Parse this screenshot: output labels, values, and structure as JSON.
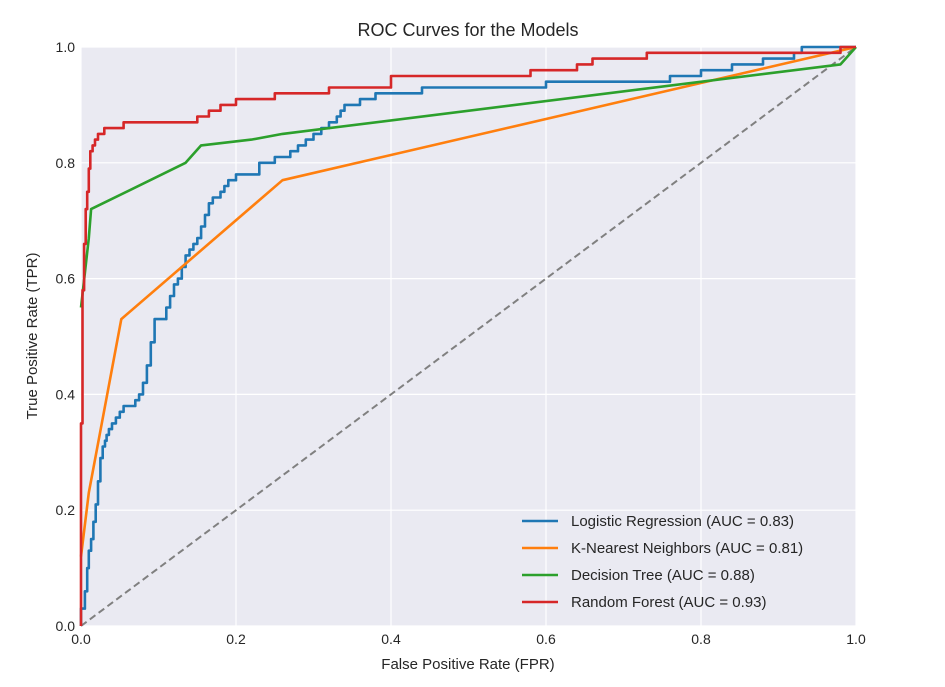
{
  "chart_data": {
    "type": "line",
    "title": "ROC Curves for the Models",
    "xlabel": "False Positive Rate (FPR)",
    "ylabel": "True Positive Rate (TPR)",
    "xlim": [
      0.0,
      1.0
    ],
    "ylim": [
      0.0,
      1.0
    ],
    "xticks": [
      0.0,
      0.2,
      0.4,
      0.6,
      0.8,
      1.0
    ],
    "yticks": [
      0.0,
      0.2,
      0.4,
      0.6,
      0.8,
      1.0
    ],
    "xtick_labels": [
      "0.0",
      "0.2",
      "0.4",
      "0.6",
      "0.8",
      "1.0"
    ],
    "ytick_labels": [
      "0.0",
      "0.2",
      "0.4",
      "0.6",
      "0.8",
      "1.0"
    ],
    "grid": true,
    "legend_position": "lower-right",
    "background": "#eaeaf2",
    "series": [
      {
        "name": "Logistic Regression (AUC = 0.83)",
        "color": "#1f77b4",
        "step": true,
        "x": [
          0.0,
          0.0,
          0.005,
          0.005,
          0.008,
          0.008,
          0.01,
          0.01,
          0.013,
          0.013,
          0.016,
          0.016,
          0.019,
          0.019,
          0.022,
          0.022,
          0.025,
          0.025,
          0.028,
          0.028,
          0.031,
          0.031,
          0.033,
          0.033,
          0.036,
          0.036,
          0.04,
          0.04,
          0.045,
          0.045,
          0.05,
          0.05,
          0.055,
          0.055,
          0.07,
          0.07,
          0.075,
          0.075,
          0.08,
          0.08,
          0.085,
          0.085,
          0.09,
          0.09,
          0.095,
          0.095,
          0.11,
          0.11,
          0.115,
          0.115,
          0.12,
          0.12,
          0.125,
          0.125,
          0.13,
          0.13,
          0.135,
          0.135,
          0.14,
          0.14,
          0.145,
          0.145,
          0.15,
          0.15,
          0.155,
          0.155,
          0.16,
          0.16,
          0.165,
          0.165,
          0.17,
          0.17,
          0.18,
          0.18,
          0.185,
          0.185,
          0.19,
          0.19,
          0.2,
          0.2,
          0.23,
          0.23,
          0.25,
          0.25,
          0.27,
          0.27,
          0.28,
          0.28,
          0.29,
          0.29,
          0.3,
          0.3,
          0.31,
          0.31,
          0.32,
          0.32,
          0.33,
          0.33,
          0.335,
          0.335,
          0.34,
          0.34,
          0.36,
          0.36,
          0.38,
          0.38,
          0.44,
          0.44,
          0.6,
          0.6,
          0.76,
          0.76,
          0.8,
          0.8,
          0.84,
          0.84,
          0.88,
          0.88,
          0.92,
          0.92,
          0.93,
          0.93,
          1.0
        ],
        "y": [
          0.0,
          0.03,
          0.03,
          0.06,
          0.06,
          0.1,
          0.1,
          0.13,
          0.13,
          0.15,
          0.15,
          0.18,
          0.18,
          0.21,
          0.21,
          0.25,
          0.25,
          0.29,
          0.29,
          0.31,
          0.31,
          0.32,
          0.32,
          0.33,
          0.33,
          0.34,
          0.34,
          0.35,
          0.35,
          0.36,
          0.36,
          0.37,
          0.37,
          0.38,
          0.38,
          0.39,
          0.39,
          0.4,
          0.4,
          0.42,
          0.42,
          0.45,
          0.45,
          0.49,
          0.49,
          0.53,
          0.53,
          0.55,
          0.55,
          0.57,
          0.57,
          0.59,
          0.59,
          0.6,
          0.6,
          0.62,
          0.62,
          0.64,
          0.64,
          0.65,
          0.65,
          0.66,
          0.66,
          0.67,
          0.67,
          0.69,
          0.69,
          0.71,
          0.71,
          0.73,
          0.73,
          0.74,
          0.74,
          0.75,
          0.75,
          0.76,
          0.76,
          0.77,
          0.77,
          0.78,
          0.78,
          0.8,
          0.8,
          0.81,
          0.81,
          0.82,
          0.82,
          0.83,
          0.83,
          0.84,
          0.84,
          0.85,
          0.85,
          0.86,
          0.86,
          0.87,
          0.87,
          0.88,
          0.88,
          0.89,
          0.89,
          0.9,
          0.9,
          0.91,
          0.91,
          0.92,
          0.92,
          0.93,
          0.93,
          0.94,
          0.94,
          0.95,
          0.95,
          0.96,
          0.96,
          0.97,
          0.97,
          0.98,
          0.98,
          0.99,
          0.99,
          1.0,
          1.0
        ]
      },
      {
        "name": "K-Nearest Neighbors (AUC = 0.81)",
        "color": "#ff7f0e",
        "step": false,
        "x": [
          0.0,
          0.01,
          0.052,
          0.26,
          1.0
        ],
        "y": [
          0.12,
          0.23,
          0.53,
          0.77,
          1.0
        ]
      },
      {
        "name": "Decision Tree (AUC = 0.88)",
        "color": "#2ca02c",
        "step": false,
        "x": [
          0.0,
          0.01,
          0.013,
          0.135,
          0.155,
          0.22,
          0.26,
          0.98,
          1.0
        ],
        "y": [
          0.55,
          0.67,
          0.72,
          0.8,
          0.83,
          0.84,
          0.85,
          0.97,
          1.0
        ]
      },
      {
        "name": "Random Forest (AUC = 0.93)",
        "color": "#d62728",
        "step": true,
        "x": [
          0.0,
          0.0,
          0.002,
          0.002,
          0.004,
          0.004,
          0.006,
          0.006,
          0.008,
          0.008,
          0.01,
          0.01,
          0.012,
          0.012,
          0.015,
          0.015,
          0.018,
          0.018,
          0.022,
          0.022,
          0.03,
          0.03,
          0.055,
          0.055,
          0.15,
          0.15,
          0.165,
          0.165,
          0.18,
          0.18,
          0.2,
          0.2,
          0.25,
          0.25,
          0.32,
          0.32,
          0.4,
          0.4,
          0.58,
          0.58,
          0.64,
          0.64,
          0.66,
          0.66,
          0.73,
          0.73,
          0.98,
          0.98,
          1.0
        ],
        "y": [
          0.0,
          0.35,
          0.35,
          0.58,
          0.58,
          0.66,
          0.66,
          0.72,
          0.72,
          0.75,
          0.75,
          0.79,
          0.79,
          0.82,
          0.82,
          0.83,
          0.83,
          0.84,
          0.84,
          0.85,
          0.85,
          0.86,
          0.86,
          0.87,
          0.87,
          0.88,
          0.88,
          0.89,
          0.89,
          0.9,
          0.9,
          0.91,
          0.91,
          0.92,
          0.92,
          0.93,
          0.93,
          0.95,
          0.95,
          0.96,
          0.96,
          0.97,
          0.97,
          0.98,
          0.98,
          0.99,
          0.99,
          1.0,
          1.0
        ]
      }
    ],
    "reference_line": {
      "x": [
        0.0,
        1.0
      ],
      "y": [
        0.0,
        1.0
      ],
      "color": "#808080",
      "style": "dashed"
    }
  }
}
